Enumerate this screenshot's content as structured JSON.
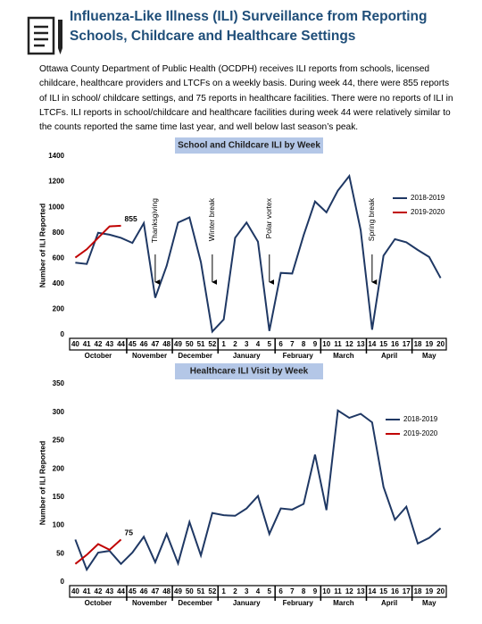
{
  "title": "Influenza-Like Illness (ILI) Surveillance from Reporting Schools, Childcare and Healthcare Settings",
  "body": "Ottawa County Department of Public Health (OCDPH) receives ILI reports from schools, licensed childcare, healthcare providers and LTCFs on a weekly basis. During week 44, there were 855 reports of ILI in school/ childcare settings, and 75 reports in healthcare facilities. There were no reports of ILI in LTCFs. ILI reports in school/childcare and healthcare facilities during week 44 were relatively similar to the counts reported the same time last year, and well below last season’s peak.",
  "chart_data": [
    {
      "type": "line",
      "title": "School and Childcare ILI by Week",
      "ylabel": "Number of ILI Reported",
      "categories": [
        "40",
        "41",
        "42",
        "43",
        "44",
        "45",
        "46",
        "47",
        "48",
        "49",
        "50",
        "51",
        "52",
        "1",
        "2",
        "3",
        "4",
        "5",
        "6",
        "7",
        "8",
        "9",
        "10",
        "11",
        "12",
        "13",
        "14",
        "15",
        "16",
        "17",
        "18",
        "19",
        "20"
      ],
      "months": [
        {
          "label": "October",
          "count": 5
        },
        {
          "label": "November",
          "count": 4
        },
        {
          "label": "December",
          "count": 4
        },
        {
          "label": "January",
          "count": 5
        },
        {
          "label": "February",
          "count": 4
        },
        {
          "label": "March",
          "count": 4
        },
        {
          "label": "April",
          "count": 4
        },
        {
          "label": "May",
          "count": 3
        }
      ],
      "series": [
        {
          "name": "2018-2019",
          "color": "#1f3864",
          "values": [
            565,
            555,
            800,
            785,
            760,
            720,
            875,
            290,
            540,
            880,
            920,
            570,
            25,
            120,
            760,
            880,
            730,
            30,
            485,
            480,
            780,
            1045,
            960,
            1130,
            1245,
            820,
            40,
            620,
            750,
            725,
            665,
            610,
            445
          ]
        },
        {
          "name": "2019-2020",
          "color": "#c00000",
          "values": [
            605,
            670,
            760,
            850,
            855,
            null,
            null,
            null,
            null,
            null,
            null,
            null,
            null,
            null,
            null,
            null,
            null,
            null,
            null,
            null,
            null,
            null,
            null,
            null,
            null,
            null,
            null,
            null,
            null,
            null,
            null,
            null,
            null
          ],
          "value_labels": [
            null,
            null,
            null,
            null,
            "855",
            null,
            null,
            null,
            null,
            null,
            null,
            null,
            null,
            null,
            null,
            null,
            null,
            null,
            null,
            null,
            null,
            null,
            null,
            null,
            null,
            null,
            null,
            null,
            null,
            null,
            null,
            null,
            null
          ]
        }
      ],
      "annotations": [
        {
          "text": "Thanksgiving",
          "x": "47"
        },
        {
          "text": "Winter break",
          "x": "52"
        },
        {
          "text": "Polar vortex",
          "x": "5"
        },
        {
          "text": "Spring break",
          "x": "14"
        }
      ],
      "ylim": [
        0,
        1400
      ],
      "yticks": [
        0,
        200,
        400,
        600,
        800,
        1000,
        1200,
        1400
      ],
      "legend": "upper right"
    },
    {
      "type": "line",
      "title": "Healthcare ILI Visit by Week",
      "ylabel": "Number of ILI Reported",
      "categories": [
        "40",
        "41",
        "42",
        "43",
        "44",
        "45",
        "46",
        "47",
        "48",
        "49",
        "50",
        "51",
        "52",
        "1",
        "2",
        "3",
        "4",
        "5",
        "6",
        "7",
        "8",
        "9",
        "10",
        "11",
        "12",
        "13",
        "14",
        "15",
        "16",
        "17",
        "18",
        "19",
        "20"
      ],
      "months": [
        {
          "label": "October",
          "count": 5
        },
        {
          "label": "November",
          "count": 4
        },
        {
          "label": "December",
          "count": 4
        },
        {
          "label": "January",
          "count": 5
        },
        {
          "label": "February",
          "count": 4
        },
        {
          "label": "March",
          "count": 4
        },
        {
          "label": "April",
          "count": 4
        },
        {
          "label": "May",
          "count": 3
        }
      ],
      "series": [
        {
          "name": "2018-2019",
          "color": "#1f3864",
          "values": [
            75,
            22,
            52,
            55,
            32,
            52,
            80,
            35,
            85,
            33,
            106,
            47,
            122,
            118,
            117,
            130,
            152,
            85,
            130,
            128,
            138,
            225,
            127,
            303,
            290,
            297,
            282,
            168,
            110,
            133,
            68,
            78,
            95
          ]
        },
        {
          "name": "2019-2020",
          "color": "#c00000",
          "values": [
            32,
            48,
            67,
            57,
            75,
            null,
            null,
            null,
            null,
            null,
            null,
            null,
            null,
            null,
            null,
            null,
            null,
            null,
            null,
            null,
            null,
            null,
            null,
            null,
            null,
            null,
            null,
            null,
            null,
            null,
            null,
            null,
            null
          ],
          "value_labels": [
            null,
            null,
            null,
            null,
            "75",
            null,
            null,
            null,
            null,
            null,
            null,
            null,
            null,
            null,
            null,
            null,
            null,
            null,
            null,
            null,
            null,
            null,
            null,
            null,
            null,
            null,
            null,
            null,
            null,
            null,
            null,
            null,
            null
          ]
        }
      ],
      "annotations": [],
      "ylim": [
        0,
        350
      ],
      "yticks": [
        0,
        50,
        100,
        150,
        200,
        250,
        300,
        350
      ],
      "legend": "upper right"
    }
  ]
}
